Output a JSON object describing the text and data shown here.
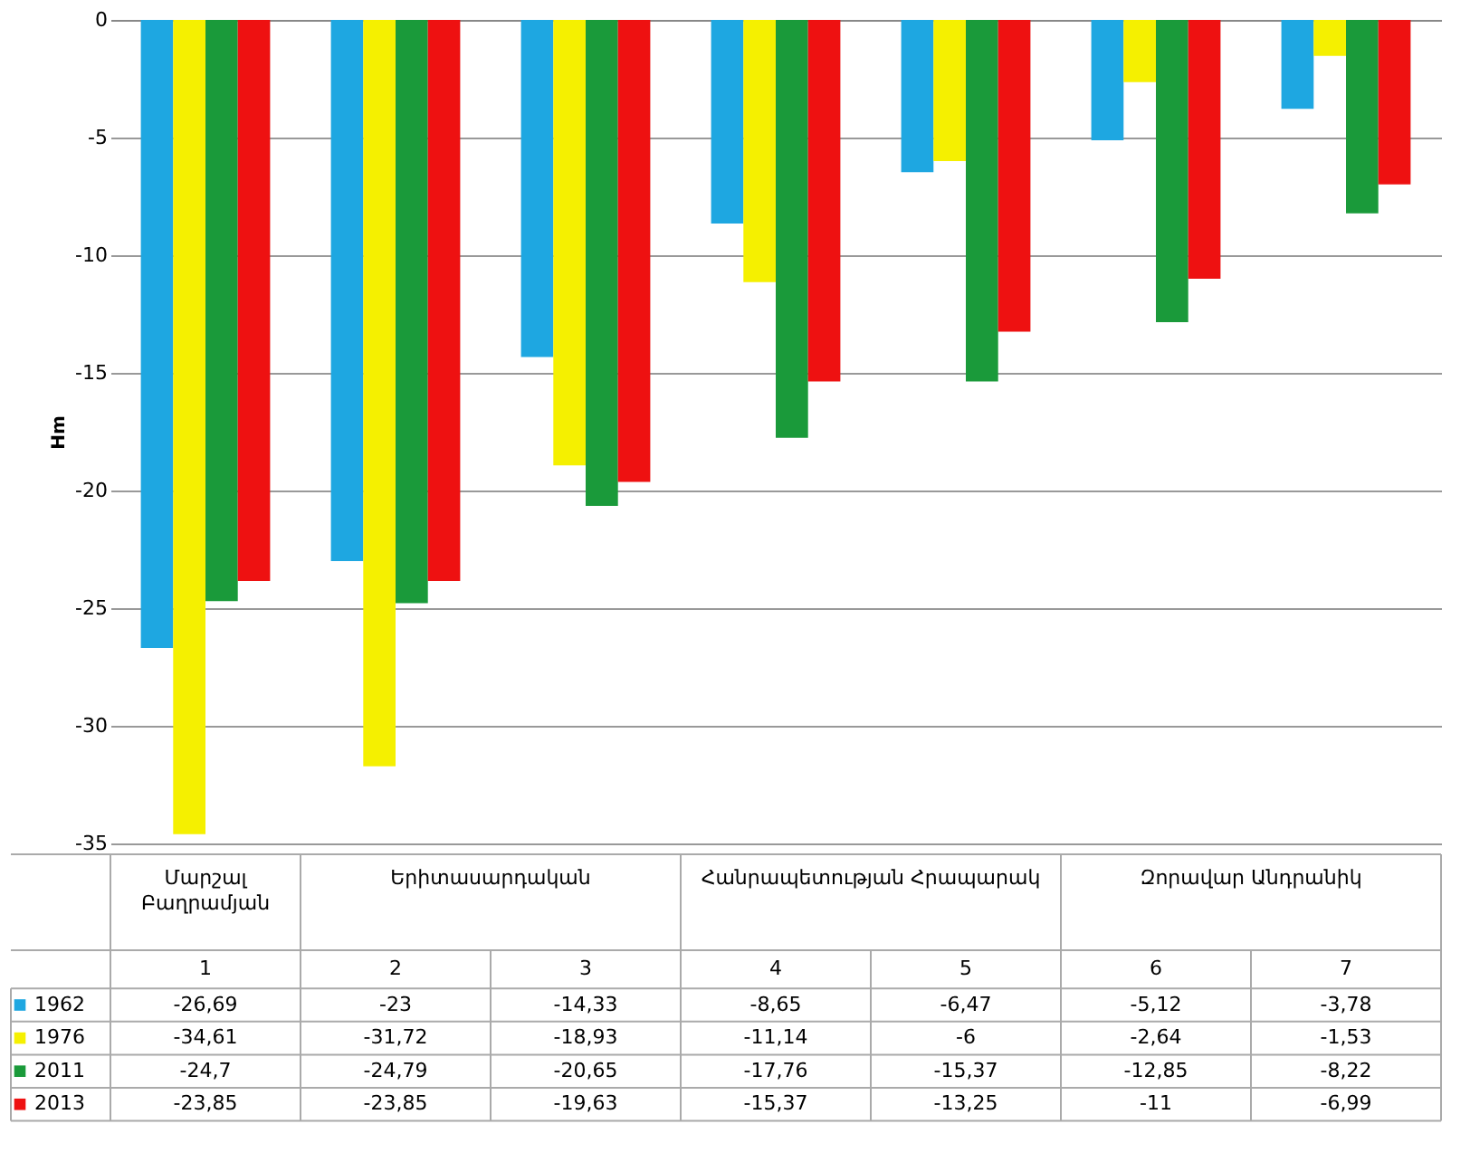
{
  "chart_data": {
    "type": "bar",
    "ylabel": "Hm",
    "categories": [
      "1",
      "2",
      "3",
      "4",
      "5",
      "6",
      "7"
    ],
    "series": [
      {
        "name": "1962",
        "color": "#1ea7e1",
        "values": [
          -26.69,
          -23,
          -14.33,
          -8.65,
          -6.47,
          -5.12,
          -3.78
        ],
        "value_labels": [
          "-26,69",
          "-23",
          "-14,33",
          "-8,65",
          "-6,47",
          "-5,12",
          "-3,78"
        ]
      },
      {
        "name": "1976",
        "color": "#f5f000",
        "values": [
          -34.61,
          -31.72,
          -18.93,
          -11.14,
          -6,
          -2.64,
          -1.53
        ],
        "value_labels": [
          "-34,61",
          "-31,72",
          "-18,93",
          "-11,14",
          "-6",
          "-2,64",
          "-1,53"
        ]
      },
      {
        "name": "2011",
        "color": "#1a9a3a",
        "values": [
          -24.7,
          -24.79,
          -20.65,
          -17.76,
          -15.37,
          -12.85,
          -8.22
        ],
        "value_labels": [
          "-24,7",
          "-24,79",
          "-20,65",
          "-17,76",
          "-15,37",
          "-12,85",
          "-8,22"
        ]
      },
      {
        "name": "2013",
        "color": "#ee1111",
        "values": [
          -23.85,
          -23.85,
          -19.63,
          -15.37,
          -13.25,
          -11,
          -6.99
        ],
        "value_labels": [
          "-23,85",
          "-23,85",
          "-19,63",
          "-15,37",
          "-13,25",
          "-11",
          "-6,99"
        ]
      }
    ],
    "annotations": [
      "Մարշալ Բաղրամյան",
      "Երիտասարդական",
      "Հանրապետության Հրապարակ",
      "Զորավար Անդրանիկ"
    ],
    "ylim": [
      -35,
      0
    ],
    "yticks": [
      0,
      -5,
      -10,
      -15,
      -20,
      -25,
      -30,
      -35
    ],
    "grid": "y",
    "legend": "bottom",
    "tick_labels": "y"
  }
}
